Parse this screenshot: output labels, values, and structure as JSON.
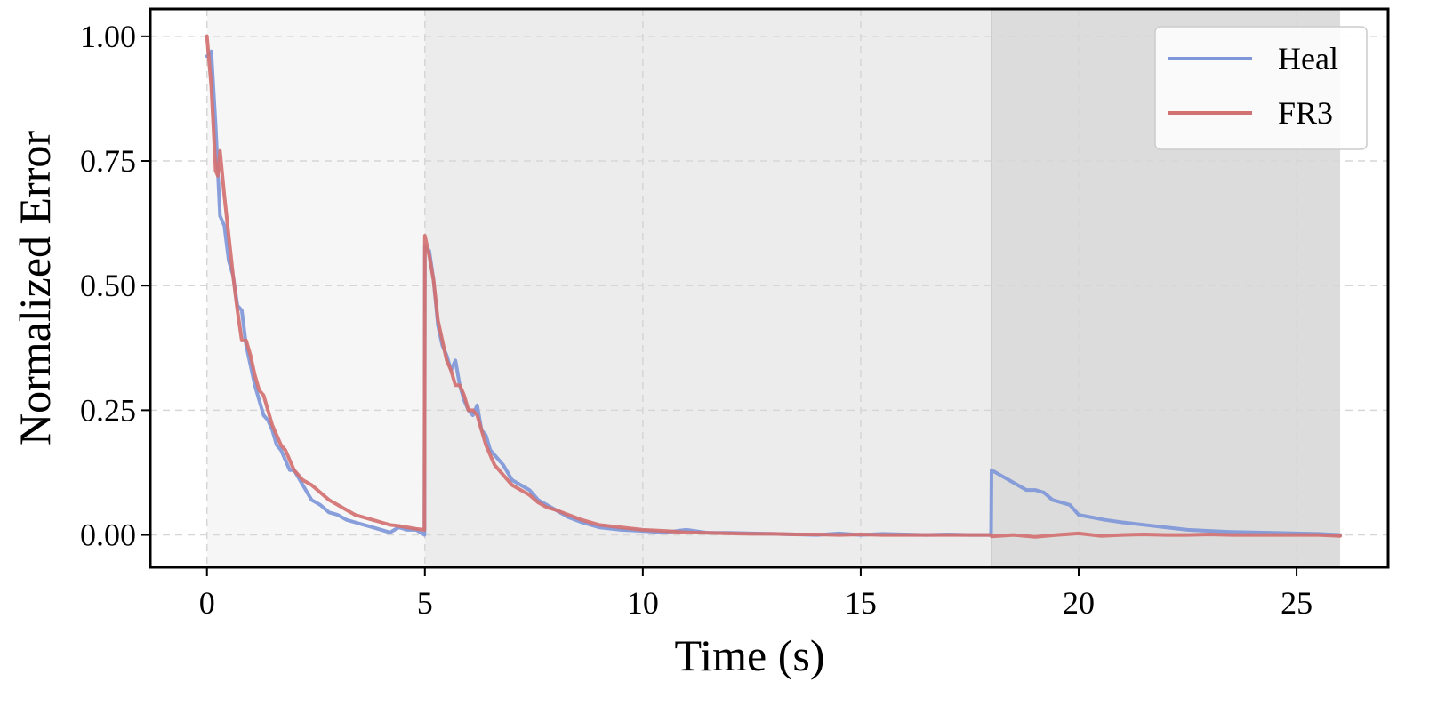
{
  "chart_data": {
    "type": "line",
    "title": "",
    "xlabel": "Time (s)",
    "ylabel": "Normalized Error",
    "xlim": [
      -1.3,
      27.1
    ],
    "ylim": [
      -0.065,
      1.055
    ],
    "xticks": [
      0,
      5,
      10,
      15,
      20,
      25
    ],
    "xtick_labels": [
      "0",
      "5",
      "10",
      "15",
      "20",
      "25"
    ],
    "yticks": [
      0.0,
      0.25,
      0.5,
      0.75,
      1.0
    ],
    "ytick_labels": [
      "0.00",
      "0.25",
      "0.50",
      "0.75",
      "1.00"
    ],
    "grid": true,
    "legend_position": "top-right",
    "shaded_regions": [
      {
        "x0": 0,
        "x1": 5,
        "color": "#f6f6f6"
      },
      {
        "x0": 5,
        "x1": 18,
        "color": "#ececec"
      },
      {
        "x0": 18,
        "x1": 26,
        "color": "#dcdcdc"
      }
    ],
    "series": [
      {
        "name": "Heal",
        "color": "#7f97d8",
        "x": [
          0,
          0.1,
          0.2,
          0.3,
          0.4,
          0.5,
          0.6,
          0.7,
          0.8,
          0.9,
          1.0,
          1.1,
          1.2,
          1.3,
          1.4,
          1.5,
          1.6,
          1.7,
          1.8,
          1.9,
          2.0,
          2.2,
          2.4,
          2.6,
          2.8,
          3.0,
          3.2,
          3.4,
          3.6,
          3.8,
          4.0,
          4.2,
          4.4,
          4.6,
          4.8,
          4.99,
          5.0,
          5.1,
          5.2,
          5.3,
          5.4,
          5.5,
          5.6,
          5.7,
          5.8,
          5.9,
          6.0,
          6.1,
          6.2,
          6.3,
          6.4,
          6.5,
          6.6,
          6.8,
          7.0,
          7.2,
          7.4,
          7.6,
          7.8,
          8.0,
          8.3,
          8.6,
          9.0,
          9.5,
          10.0,
          10.5,
          11.0,
          11.5,
          12.0,
          12.5,
          13.0,
          13.5,
          14.0,
          14.5,
          15.0,
          15.5,
          16.0,
          16.5,
          17.0,
          17.5,
          17.99,
          18.0,
          18.2,
          18.4,
          18.6,
          18.8,
          19.0,
          19.2,
          19.4,
          19.6,
          19.8,
          20.0,
          20.3,
          20.6,
          21.0,
          21.5,
          22.0,
          22.5,
          23.0,
          23.5,
          24.0,
          24.5,
          25.0,
          25.5,
          26.0
        ],
        "y": [
          0.96,
          0.97,
          0.82,
          0.64,
          0.62,
          0.55,
          0.52,
          0.46,
          0.45,
          0.38,
          0.34,
          0.3,
          0.27,
          0.24,
          0.23,
          0.21,
          0.18,
          0.17,
          0.15,
          0.13,
          0.13,
          0.1,
          0.07,
          0.06,
          0.045,
          0.04,
          0.03,
          0.025,
          0.02,
          0.015,
          0.01,
          0.005,
          0.015,
          0.01,
          0.01,
          0.0,
          0.58,
          0.57,
          0.51,
          0.42,
          0.38,
          0.36,
          0.33,
          0.35,
          0.3,
          0.27,
          0.25,
          0.24,
          0.26,
          0.21,
          0.2,
          0.17,
          0.16,
          0.14,
          0.11,
          0.1,
          0.09,
          0.07,
          0.06,
          0.05,
          0.035,
          0.025,
          0.015,
          0.01,
          0.008,
          0.005,
          0.01,
          0.004,
          0.004,
          0.003,
          0.002,
          0.001,
          0.0,
          0.003,
          0.0,
          0.002,
          0.001,
          0.0,
          0.001,
          0.0,
          0.0,
          0.13,
          0.12,
          0.11,
          0.1,
          0.09,
          0.09,
          0.085,
          0.07,
          0.065,
          0.06,
          0.04,
          0.035,
          0.03,
          0.025,
          0.02,
          0.015,
          0.01,
          0.008,
          0.006,
          0.005,
          0.004,
          0.003,
          0.002,
          0.0
        ]
      },
      {
        "name": "FR3",
        "color": "#d27171",
        "x": [
          0,
          0.1,
          0.2,
          0.25,
          0.3,
          0.4,
          0.5,
          0.6,
          0.7,
          0.8,
          0.9,
          1.0,
          1.1,
          1.2,
          1.3,
          1.4,
          1.5,
          1.6,
          1.7,
          1.8,
          1.9,
          2.0,
          2.2,
          2.4,
          2.6,
          2.8,
          3.0,
          3.2,
          3.4,
          3.6,
          3.8,
          4.0,
          4.2,
          4.4,
          4.6,
          4.8,
          4.99,
          5.0,
          5.1,
          5.2,
          5.3,
          5.4,
          5.5,
          5.6,
          5.7,
          5.8,
          5.9,
          6.0,
          6.1,
          6.2,
          6.3,
          6.4,
          6.5,
          6.6,
          6.8,
          7.0,
          7.2,
          7.4,
          7.6,
          7.8,
          8.0,
          8.3,
          8.6,
          9.0,
          9.5,
          10.0,
          10.5,
          11.0,
          11.5,
          12.0,
          12.5,
          13.0,
          13.5,
          14.0,
          14.5,
          15.0,
          15.5,
          16.0,
          16.5,
          17.0,
          17.5,
          17.99,
          18.0,
          18.5,
          19.0,
          19.5,
          20.0,
          20.5,
          21.0,
          21.5,
          22.0,
          22.5,
          23.0,
          23.5,
          24.0,
          24.5,
          25.0,
          25.5,
          26.0
        ],
        "y": [
          1.0,
          0.9,
          0.73,
          0.72,
          0.77,
          0.68,
          0.6,
          0.52,
          0.45,
          0.39,
          0.39,
          0.36,
          0.32,
          0.29,
          0.28,
          0.25,
          0.22,
          0.2,
          0.18,
          0.17,
          0.15,
          0.13,
          0.11,
          0.1,
          0.085,
          0.07,
          0.06,
          0.05,
          0.04,
          0.035,
          0.03,
          0.025,
          0.02,
          0.018,
          0.015,
          0.012,
          0.01,
          0.6,
          0.56,
          0.51,
          0.43,
          0.39,
          0.35,
          0.33,
          0.3,
          0.3,
          0.28,
          0.25,
          0.25,
          0.24,
          0.21,
          0.18,
          0.16,
          0.14,
          0.12,
          0.1,
          0.09,
          0.08,
          0.065,
          0.055,
          0.05,
          0.04,
          0.03,
          0.02,
          0.015,
          0.01,
          0.008,
          0.005,
          0.004,
          0.003,
          0.002,
          0.002,
          0.001,
          0.001,
          0.0,
          0.001,
          0.0,
          0.0,
          0.0,
          0.0,
          0.0,
          0.0,
          -0.003,
          0.0,
          -0.004,
          0.0,
          0.003,
          -0.002,
          0.0,
          0.001,
          0.0,
          0.0,
          0.001,
          0.0,
          0.0,
          0.0,
          0.0,
          0.0,
          -0.002
        ]
      }
    ]
  }
}
